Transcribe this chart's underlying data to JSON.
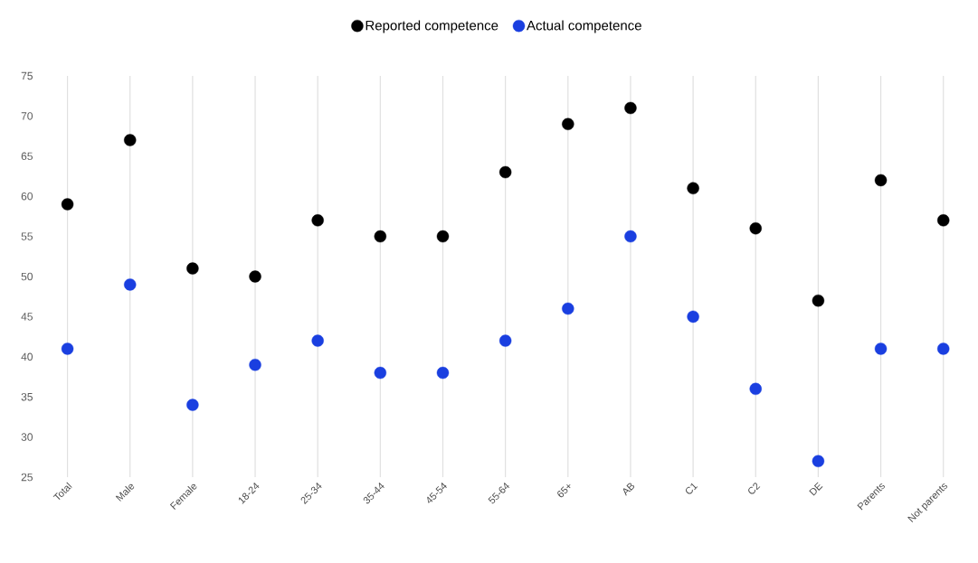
{
  "chart_data": {
    "type": "scatter",
    "categories": [
      "Total",
      "Male",
      "Female",
      "18-24",
      "25-34",
      "35-44",
      "45-54",
      "55-64",
      "65+",
      "AB",
      "C1",
      "C2",
      "DE",
      "Parents",
      "Not parents"
    ],
    "series": [
      {
        "name": "Reported competence",
        "color": "#000000",
        "values": [
          59,
          67,
          51,
          50,
          57,
          55,
          55,
          63,
          69,
          71,
          61,
          56,
          47,
          62,
          57
        ]
      },
      {
        "name": "Actual competence",
        "color": "#1a3fe0",
        "values": [
          41,
          49,
          34,
          39,
          42,
          38,
          38,
          42,
          46,
          55,
          45,
          36,
          27,
          41,
          41
        ]
      }
    ],
    "ylim": [
      25,
      75
    ],
    "yticks": [
      25,
      30,
      35,
      40,
      45,
      50,
      55,
      60,
      65,
      70,
      75
    ],
    "grid": "x",
    "legend": "top",
    "marker": "circle"
  }
}
